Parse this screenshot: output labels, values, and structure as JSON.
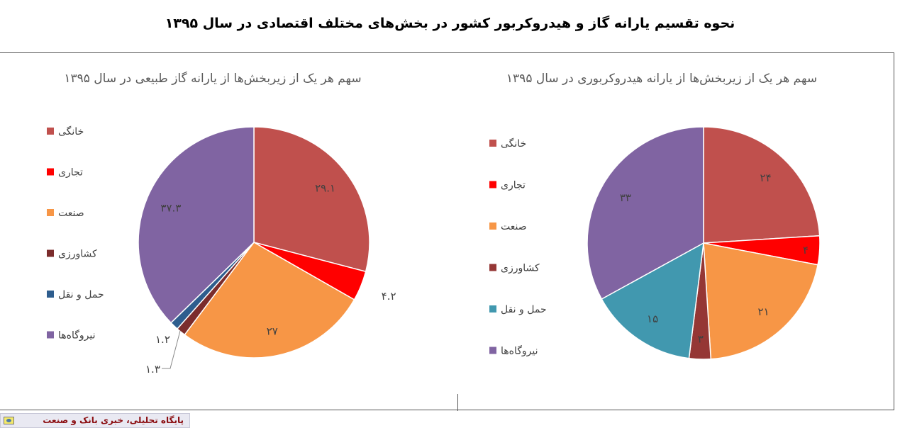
{
  "page": {
    "title": "نحوه تقسیم یارانه گاز و هیدروکربور کشور در بخش‌های مختلف اقتصادی در سال ۱۳۹۵",
    "footer": "پایگاه تحلیلی، خبری بانک و صنعت"
  },
  "chart_data": [
    {
      "type": "pie",
      "title": "سهم هر یک از زیربخش‌ها از یارانه گاز طبیعی در سال ۱۳۹۵",
      "legend_position": "left",
      "slices": [
        {
          "label": "خانگی",
          "value": 29.1,
          "value_label": "۲۹.۱",
          "color": "#c0504d"
        },
        {
          "label": "تجاری",
          "value": 4.2,
          "value_label": "۴.۲",
          "color": "#ff0000"
        },
        {
          "label": "صنعت",
          "value": 27,
          "value_label": "۲۷",
          "color": "#f79646"
        },
        {
          "label": "کشاورزی",
          "value": 1.3,
          "value_label": "۱.۳",
          "color": "#7b2c2c"
        },
        {
          "label": "حمل و نقل",
          "value": 1.2,
          "value_label": "۱.۲",
          "color": "#2e5d8e"
        },
        {
          "label": "نیروگاه‌ها",
          "value": 37.3,
          "value_label": "۳۷.۳",
          "color": "#8064a2"
        }
      ]
    },
    {
      "type": "pie",
      "title": "سهم هر یک از زیربخش‌ها از یارانه هیدروکربوری در سال ۱۳۹۵",
      "legend_position": "left",
      "slices": [
        {
          "label": "خانگی",
          "value": 24,
          "value_label": "۲۴",
          "color": "#c0504d"
        },
        {
          "label": "تجاری",
          "value": 4,
          "value_label": "۴",
          "color": "#ff0000"
        },
        {
          "label": "صنعت",
          "value": 21,
          "value_label": "۲۱",
          "color": "#f79646"
        },
        {
          "label": "کشاورزی",
          "value": 3,
          "value_label": "۳",
          "color": "#953735"
        },
        {
          "label": "حمل و نقل",
          "value": 15,
          "value_label": "۱۵",
          "color": "#4198af"
        },
        {
          "label": "نیروگاه‌ها",
          "value": 33,
          "value_label": "۳۳",
          "color": "#8064a2"
        }
      ]
    }
  ]
}
